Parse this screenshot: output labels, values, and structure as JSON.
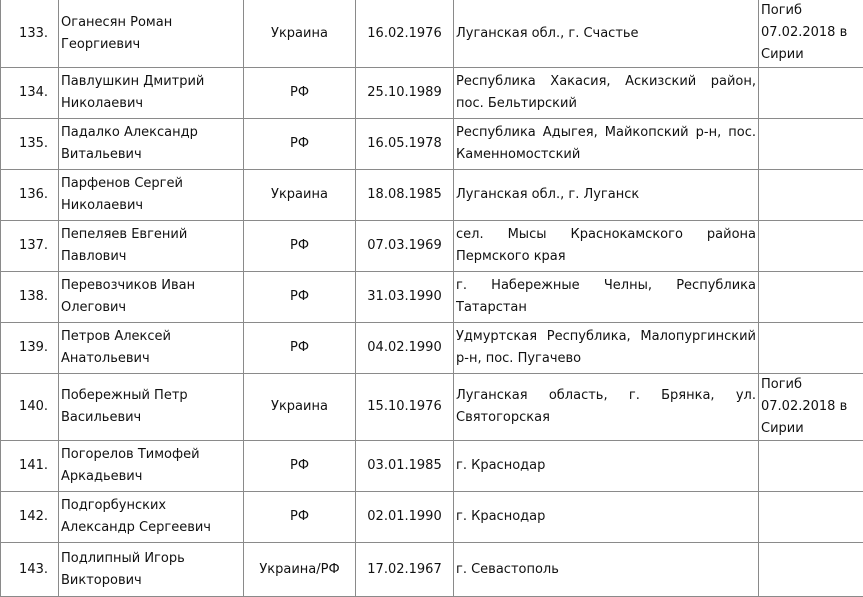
{
  "rows": [
    {
      "num": "133.",
      "name": "Оганесян Роман Георгиевич",
      "citizenship": "Украина",
      "dob": "16.02.1976",
      "address": "Луганская обл., г. Счастье",
      "note": "Погиб 07.02.2018 в Сирии"
    },
    {
      "num": "134.",
      "name": "Павлушкин Дмитрий Николаевич",
      "citizenship": "РФ",
      "dob": "25.10.1989",
      "address": "Республика Хакасия, Аскизский район, пос. Бельтирский",
      "note": ""
    },
    {
      "num": "135.",
      "name": "Падалко Александр Витальевич",
      "citizenship": "РФ",
      "dob": "16.05.1978",
      "address": "Республика Адыгея, Майкопский р-н, пос. Каменномостский",
      "note": ""
    },
    {
      "num": "136.",
      "name": "Парфенов Сергей Николаевич",
      "citizenship": "Украина",
      "dob": "18.08.1985",
      "address": "Луганская обл., г. Луганск",
      "note": ""
    },
    {
      "num": "137.",
      "name": "Пепеляев Евгений Павлович",
      "citizenship": "РФ",
      "dob": "07.03.1969",
      "address": "сел. Мысы Краснокамского района Пермского края",
      "note": ""
    },
    {
      "num": "138.",
      "name": "Перевозчиков Иван Олегович",
      "citizenship": "РФ",
      "dob": "31.03.1990",
      "address": "г. Набережные Челны, Республика Татарстан",
      "note": ""
    },
    {
      "num": "139.",
      "name": "Петров Алексей Анатольевич",
      "citizenship": "РФ",
      "dob": "04.02.1990",
      "address": "Удмуртская Республика, Малопургинский р-н, пос. Пугачево",
      "note": ""
    },
    {
      "num": "140.",
      "name": "Побережный Петр Васильевич",
      "citizenship": "Украина",
      "dob": "15.10.1976",
      "address": "Луганская область, г. Брянка, ул. Святогорская",
      "note": "Погиб 07.02.2018 в Сирии"
    },
    {
      "num": "141.",
      "name": "Погорелов Тимофей Аркадьевич",
      "citizenship": "РФ",
      "dob": "03.01.1985",
      "address": "г. Краснодар",
      "note": ""
    },
    {
      "num": "142.",
      "name": "Подгорбунских Александр Сергеевич",
      "citizenship": "РФ",
      "dob": "02.01.1990",
      "address": "г. Краснодар",
      "note": ""
    },
    {
      "num": "143.",
      "name": "Подлипный Игорь Викторович",
      "citizenship": "Украина/РФ",
      "dob": "17.02.1967",
      "address": "г. Севастополь",
      "note": ""
    }
  ]
}
